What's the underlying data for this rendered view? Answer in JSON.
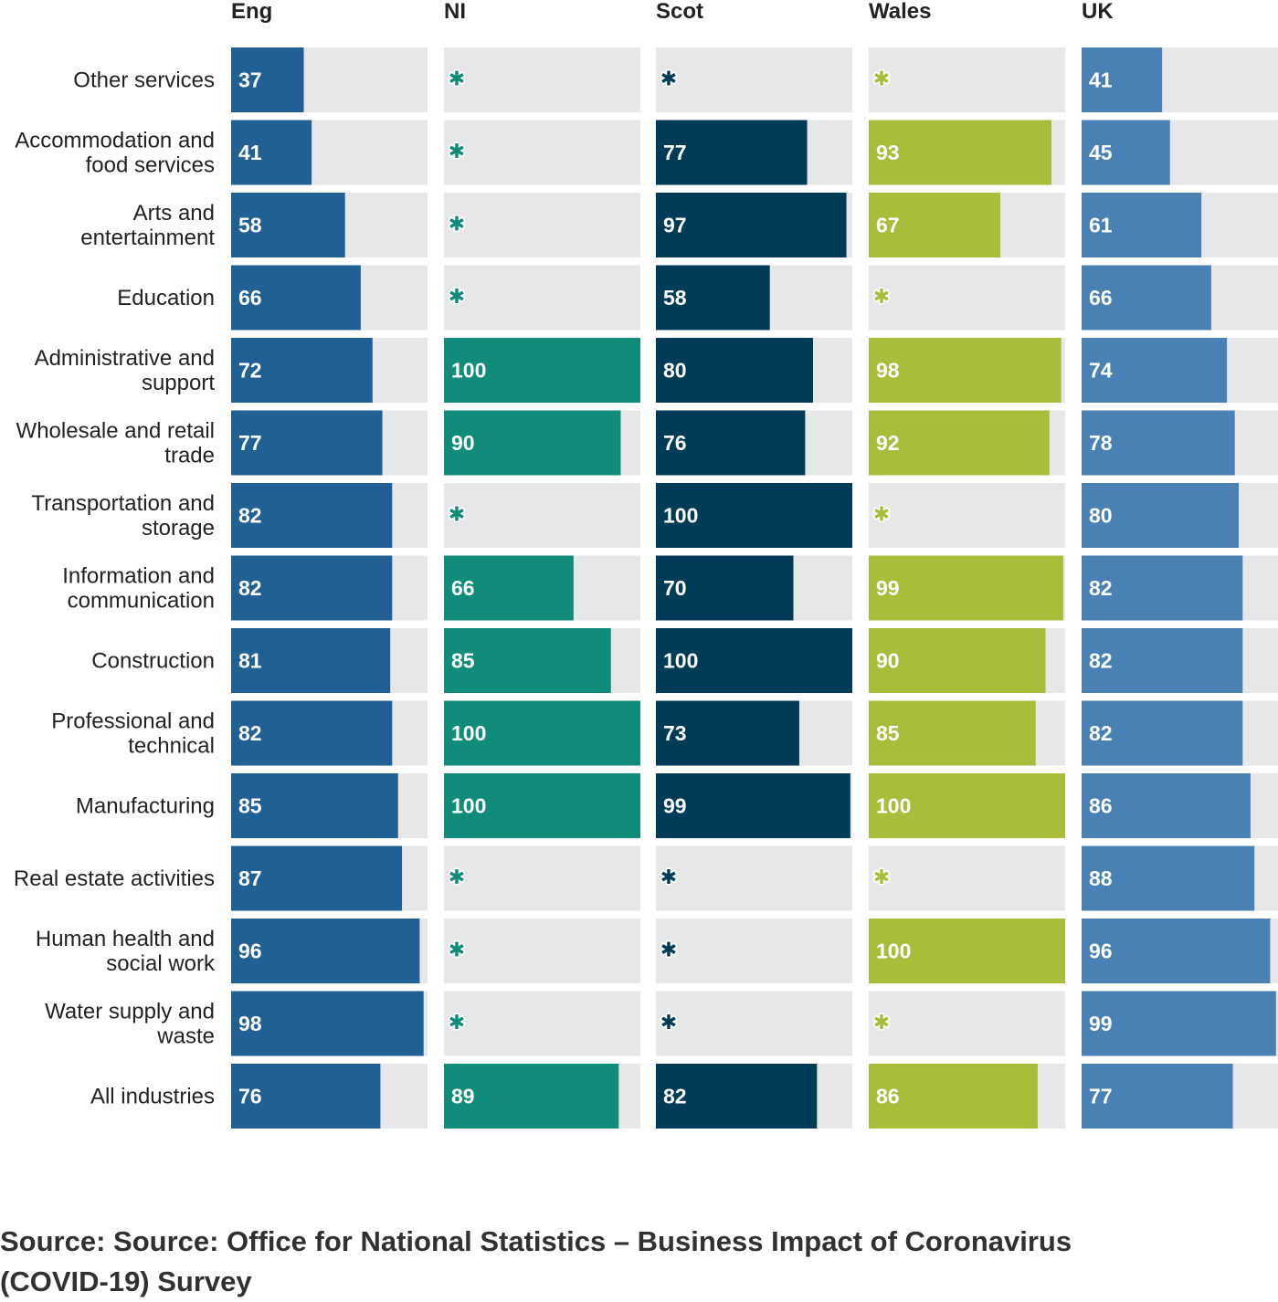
{
  "chart_data": {
    "type": "bar",
    "orientation": "horizontal",
    "xlim": [
      0,
      100
    ],
    "suppressed_marker": "✱",
    "panels": [
      {
        "name": "Eng",
        "color": "#206095"
      },
      {
        "name": "NI",
        "color": "#118c7b"
      },
      {
        "name": "Scot",
        "color": "#003c57"
      },
      {
        "name": "Wales",
        "color": "#a8bd3a"
      },
      {
        "name": "UK",
        "color": "#4a81b4"
      }
    ],
    "categories": [
      "Other services",
      "Accommodation and food services",
      "Arts and entertainment",
      "Education",
      "Administrative and support",
      "Wholesale and retail trade",
      "Transportation and storage",
      "Information and communication",
      "Construction",
      "Professional and technical",
      "Manufacturing",
      "Real estate activities",
      "Human health and social work",
      "Water supply and waste",
      "All industries"
    ],
    "category_lines": [
      [
        "Other services"
      ],
      [
        "Accommodation and",
        "food services"
      ],
      [
        "Arts and",
        "entertainment"
      ],
      [
        "Education"
      ],
      [
        "Administrative and",
        "support"
      ],
      [
        "Wholesale and retail",
        "trade"
      ],
      [
        "Transportation and",
        "storage"
      ],
      [
        "Information and",
        "communication"
      ],
      [
        "Construction"
      ],
      [
        "Professional and",
        "technical"
      ],
      [
        "Manufacturing"
      ],
      [
        "Real estate activities"
      ],
      [
        "Human health and",
        "social work"
      ],
      [
        "Water supply and",
        "waste"
      ],
      [
        "All industries"
      ]
    ],
    "series": [
      {
        "name": "Eng",
        "values": [
          37,
          41,
          58,
          66,
          72,
          77,
          82,
          82,
          81,
          82,
          85,
          87,
          96,
          98,
          76
        ]
      },
      {
        "name": "NI",
        "values": [
          null,
          null,
          null,
          null,
          100,
          90,
          null,
          66,
          85,
          100,
          100,
          null,
          null,
          null,
          89
        ]
      },
      {
        "name": "Scot",
        "values": [
          null,
          77,
          97,
          58,
          80,
          76,
          100,
          70,
          100,
          73,
          99,
          null,
          null,
          null,
          82
        ]
      },
      {
        "name": "Wales",
        "values": [
          null,
          93,
          67,
          null,
          98,
          92,
          null,
          99,
          90,
          85,
          100,
          null,
          100,
          null,
          86
        ]
      },
      {
        "name": "UK",
        "values": [
          41,
          45,
          61,
          66,
          74,
          78,
          80,
          82,
          82,
          82,
          86,
          88,
          96,
          99,
          77
        ]
      }
    ]
  },
  "source": "Source: Source: Office for National Statistics – Business Impact of Coronavirus (COVID-19) Survey"
}
